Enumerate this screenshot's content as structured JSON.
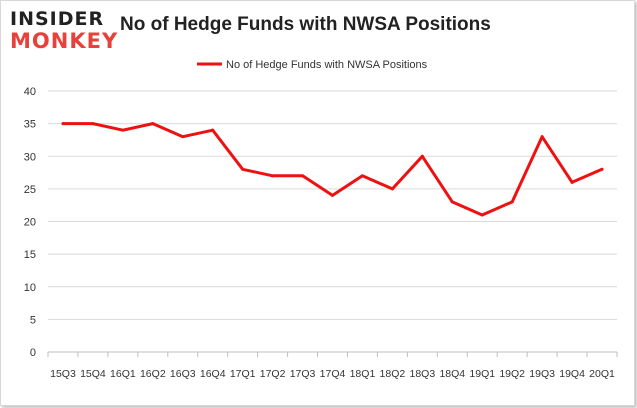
{
  "logo": {
    "line1": "INSIDER",
    "line2": "MONKEY"
  },
  "title": "No of Hedge Funds with NWSA Positions",
  "colors": {
    "series": "#ee1111",
    "grid": "#d9d9d9",
    "axis_text": "#333333",
    "logo_dark": "#222222",
    "logo_red": "#e8403a"
  },
  "chart_data": {
    "type": "line",
    "title": "No of Hedge Funds with NWSA Positions",
    "xlabel": "",
    "ylabel": "",
    "ylim": [
      0,
      40
    ],
    "yticks": [
      0,
      5,
      10,
      15,
      20,
      25,
      30,
      35,
      40
    ],
    "grid": true,
    "legend_position": "top-center",
    "categories": [
      "15Q3",
      "15Q4",
      "16Q1",
      "16Q2",
      "16Q3",
      "16Q4",
      "17Q1",
      "17Q2",
      "17Q3",
      "17Q4",
      "18Q1",
      "18Q2",
      "18Q3",
      "18Q4",
      "19Q1",
      "19Q2",
      "19Q3",
      "19Q4",
      "20Q1"
    ],
    "series": [
      {
        "name": "No of Hedge Funds with NWSA Positions",
        "values": [
          35,
          35,
          34,
          35,
          33,
          34,
          28,
          27,
          27,
          24,
          27,
          25,
          30,
          23,
          21,
          23,
          33,
          26,
          28
        ]
      }
    ]
  }
}
